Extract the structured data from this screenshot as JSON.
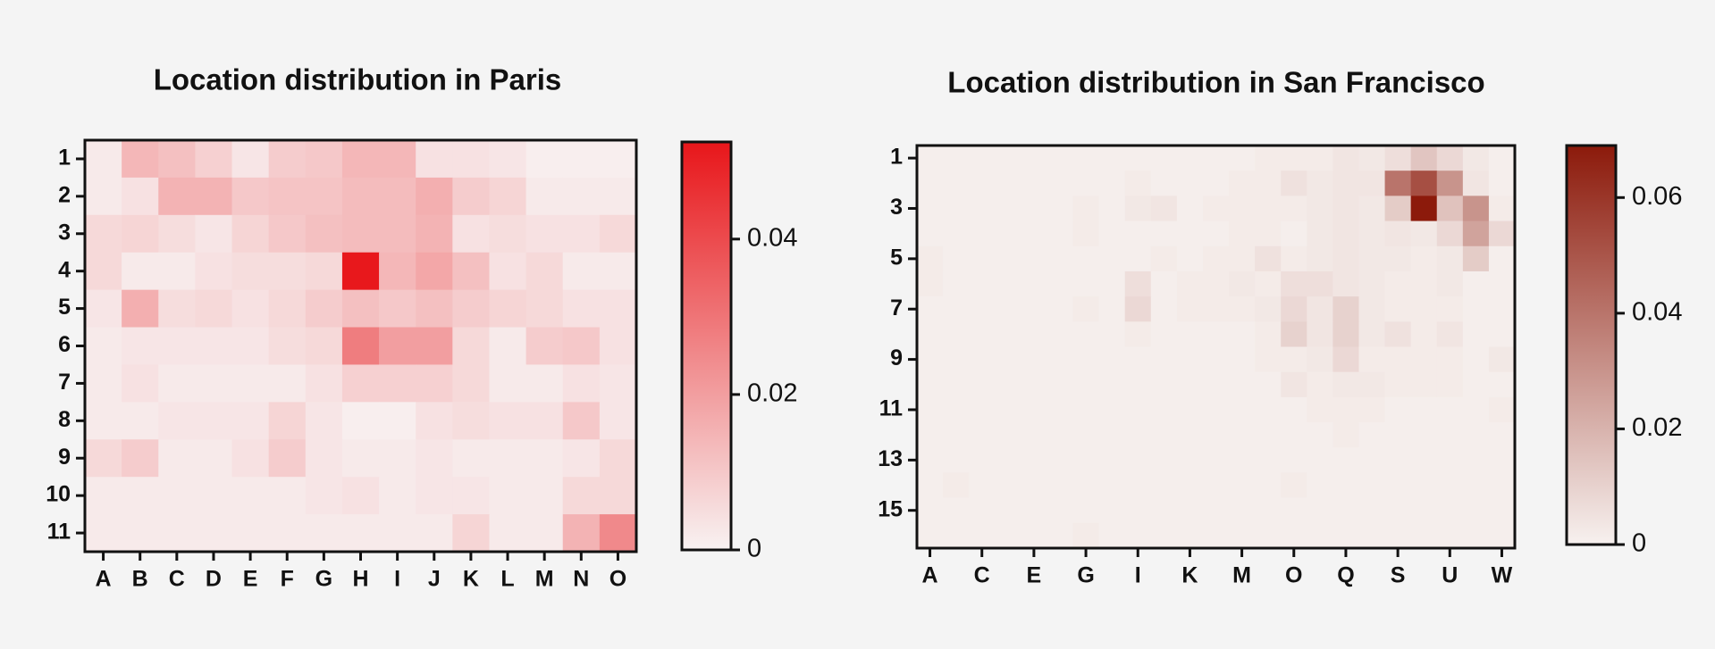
{
  "chart_data": [
    {
      "type": "heatmap",
      "title": "Location distribution in Paris",
      "x": [
        "A",
        "B",
        "C",
        "D",
        "E",
        "F",
        "G",
        "H",
        "I",
        "J",
        "K",
        "L",
        "M",
        "N",
        "O"
      ],
      "y": [
        "1",
        "2",
        "3",
        "4",
        "5",
        "6",
        "7",
        "8",
        "9",
        "10",
        "11"
      ],
      "values": [
        [
          0.002,
          0.014,
          0.012,
          0.008,
          0.003,
          0.009,
          0.01,
          0.014,
          0.014,
          0.004,
          0.004,
          0.003,
          0.001,
          0.001,
          0.001
        ],
        [
          0.002,
          0.004,
          0.015,
          0.015,
          0.01,
          0.011,
          0.011,
          0.013,
          0.013,
          0.016,
          0.009,
          0.007,
          0.002,
          0.002,
          0.002
        ],
        [
          0.006,
          0.007,
          0.005,
          0.003,
          0.007,
          0.01,
          0.012,
          0.013,
          0.013,
          0.015,
          0.004,
          0.005,
          0.004,
          0.004,
          0.006
        ],
        [
          0.006,
          0.002,
          0.002,
          0.004,
          0.005,
          0.005,
          0.006,
          0.052,
          0.014,
          0.018,
          0.012,
          0.004,
          0.006,
          0.002,
          0.002
        ],
        [
          0.003,
          0.016,
          0.005,
          0.006,
          0.004,
          0.006,
          0.009,
          0.012,
          0.01,
          0.012,
          0.009,
          0.007,
          0.006,
          0.004,
          0.004
        ],
        [
          0.002,
          0.003,
          0.003,
          0.003,
          0.003,
          0.005,
          0.006,
          0.028,
          0.02,
          0.02,
          0.006,
          0.002,
          0.009,
          0.01,
          0.004
        ],
        [
          0.002,
          0.004,
          0.002,
          0.002,
          0.002,
          0.002,
          0.004,
          0.008,
          0.008,
          0.008,
          0.006,
          0.002,
          0.002,
          0.004,
          0.003
        ],
        [
          0.002,
          0.002,
          0.003,
          0.003,
          0.003,
          0.007,
          0.003,
          0.001,
          0.001,
          0.004,
          0.005,
          0.004,
          0.004,
          0.01,
          0.003
        ],
        [
          0.006,
          0.009,
          0.002,
          0.002,
          0.004,
          0.009,
          0.003,
          0.002,
          0.002,
          0.003,
          0.002,
          0.002,
          0.002,
          0.003,
          0.006
        ],
        [
          0.002,
          0.002,
          0.002,
          0.002,
          0.002,
          0.002,
          0.003,
          0.004,
          0.002,
          0.003,
          0.003,
          0.002,
          0.002,
          0.006,
          0.006
        ],
        [
          0.002,
          0.002,
          0.002,
          0.002,
          0.002,
          0.002,
          0.002,
          0.002,
          0.002,
          0.002,
          0.007,
          0.002,
          0.002,
          0.015,
          0.025
        ]
      ],
      "zlim": [
        0,
        0.0525
      ],
      "zticks": [
        0,
        0.02,
        0.04
      ],
      "colors": [
        "#f8f2f2",
        "#e8161a"
      ]
    },
    {
      "type": "heatmap",
      "title": "Location distribution in San Francisco",
      "x": [
        "A",
        null,
        "C",
        null,
        "E",
        null,
        "G",
        null,
        "I",
        null,
        "K",
        null,
        "M",
        null,
        "O",
        null,
        "Q",
        null,
        "S",
        null,
        "U",
        null,
        "W"
      ],
      "y": [
        "1",
        null,
        "3",
        null,
        "5",
        null,
        "7",
        null,
        "9",
        null,
        "11",
        null,
        "13",
        null,
        "15",
        null
      ],
      "values": [
        [
          0.001,
          0.001,
          0.001,
          0.001,
          0.001,
          0.001,
          0.001,
          0.001,
          0.001,
          0.001,
          0.001,
          0.001,
          0.001,
          0.002,
          0.002,
          0.002,
          0.004,
          0.003,
          0.006,
          0.014,
          0.008,
          0.003,
          0.001
        ],
        [
          0.001,
          0.001,
          0.001,
          0.001,
          0.001,
          0.001,
          0.001,
          0.001,
          0.002,
          0.001,
          0.001,
          0.001,
          0.002,
          0.002,
          0.005,
          0.003,
          0.004,
          0.004,
          0.04,
          0.052,
          0.03,
          0.004,
          0.001
        ],
        [
          0.001,
          0.001,
          0.001,
          0.001,
          0.001,
          0.001,
          0.002,
          0.001,
          0.003,
          0.004,
          0.001,
          0.002,
          0.002,
          0.002,
          0.002,
          0.003,
          0.004,
          0.003,
          0.012,
          0.069,
          0.015,
          0.03,
          0.002
        ],
        [
          0.001,
          0.001,
          0.001,
          0.001,
          0.001,
          0.001,
          0.002,
          0.001,
          0.001,
          0.001,
          0.001,
          0.001,
          0.002,
          0.002,
          0.001,
          0.003,
          0.004,
          0.003,
          0.004,
          0.003,
          0.008,
          0.025,
          0.008
        ],
        [
          0.002,
          0.001,
          0.001,
          0.001,
          0.001,
          0.001,
          0.001,
          0.001,
          0.001,
          0.002,
          0.001,
          0.002,
          0.002,
          0.005,
          0.002,
          0.003,
          0.004,
          0.003,
          0.003,
          0.002,
          0.003,
          0.012,
          0.001
        ],
        [
          0.002,
          0.001,
          0.001,
          0.001,
          0.001,
          0.001,
          0.001,
          0.001,
          0.006,
          0.001,
          0.002,
          0.002,
          0.003,
          0.002,
          0.006,
          0.006,
          0.004,
          0.003,
          0.002,
          0.002,
          0.003,
          0.001,
          0.001
        ],
        [
          0.001,
          0.001,
          0.001,
          0.001,
          0.001,
          0.001,
          0.002,
          0.001,
          0.008,
          0.001,
          0.002,
          0.002,
          0.002,
          0.003,
          0.008,
          0.004,
          0.01,
          0.003,
          0.002,
          0.002,
          0.002,
          0.001,
          0.001
        ],
        [
          0.001,
          0.001,
          0.001,
          0.001,
          0.001,
          0.001,
          0.001,
          0.001,
          0.002,
          0.001,
          0.001,
          0.001,
          0.001,
          0.002,
          0.01,
          0.004,
          0.01,
          0.003,
          0.005,
          0.002,
          0.004,
          0.001,
          0.001
        ],
        [
          0.001,
          0.001,
          0.001,
          0.001,
          0.001,
          0.001,
          0.001,
          0.001,
          0.001,
          0.001,
          0.001,
          0.001,
          0.001,
          0.002,
          0.002,
          0.003,
          0.008,
          0.002,
          0.002,
          0.002,
          0.002,
          0.001,
          0.003
        ],
        [
          0.001,
          0.001,
          0.001,
          0.001,
          0.001,
          0.001,
          0.001,
          0.001,
          0.001,
          0.001,
          0.001,
          0.001,
          0.001,
          0.001,
          0.004,
          0.002,
          0.003,
          0.003,
          0.002,
          0.002,
          0.002,
          0.001,
          0.001
        ],
        [
          0.001,
          0.001,
          0.001,
          0.001,
          0.001,
          0.001,
          0.001,
          0.001,
          0.001,
          0.001,
          0.001,
          0.001,
          0.001,
          0.001,
          0.001,
          0.002,
          0.002,
          0.002,
          0.001,
          0.001,
          0.001,
          0.001,
          0.002
        ],
        [
          0.001,
          0.001,
          0.001,
          0.001,
          0.001,
          0.001,
          0.001,
          0.001,
          0.001,
          0.001,
          0.001,
          0.001,
          0.001,
          0.001,
          0.001,
          0.001,
          0.002,
          0.001,
          0.001,
          0.001,
          0.001,
          0.001,
          0.001
        ],
        [
          0.001,
          0.001,
          0.001,
          0.001,
          0.001,
          0.001,
          0.001,
          0.001,
          0.001,
          0.001,
          0.001,
          0.001,
          0.001,
          0.001,
          0.001,
          0.001,
          0.001,
          0.001,
          0.001,
          0.001,
          0.001,
          0.001,
          0.001
        ],
        [
          0.001,
          0.002,
          0.001,
          0.001,
          0.001,
          0.001,
          0.001,
          0.001,
          0.001,
          0.001,
          0.001,
          0.001,
          0.001,
          0.001,
          0.002,
          0.001,
          0.001,
          0.001,
          0.001,
          0.001,
          0.001,
          0.001,
          0.001
        ],
        [
          0.001,
          0.001,
          0.001,
          0.001,
          0.001,
          0.001,
          0.001,
          0.001,
          0.001,
          0.001,
          0.001,
          0.001,
          0.001,
          0.001,
          0.001,
          0.001,
          0.001,
          0.001,
          0.001,
          0.001,
          0.001,
          0.001,
          0.001
        ],
        [
          0.001,
          0.001,
          0.001,
          0.001,
          0.001,
          0.001,
          0.002,
          0.001,
          0.001,
          0.001,
          0.001,
          0.001,
          0.001,
          0.001,
          0.001,
          0.001,
          0.001,
          0.001,
          0.001,
          0.001,
          0.001,
          0.001,
          0.001
        ]
      ],
      "zlim": [
        0,
        0.069
      ],
      "zticks": [
        0,
        0.02,
        0.04,
        0.06
      ],
      "colors": [
        "#f7f1ef",
        "#8c1a0b"
      ]
    }
  ]
}
